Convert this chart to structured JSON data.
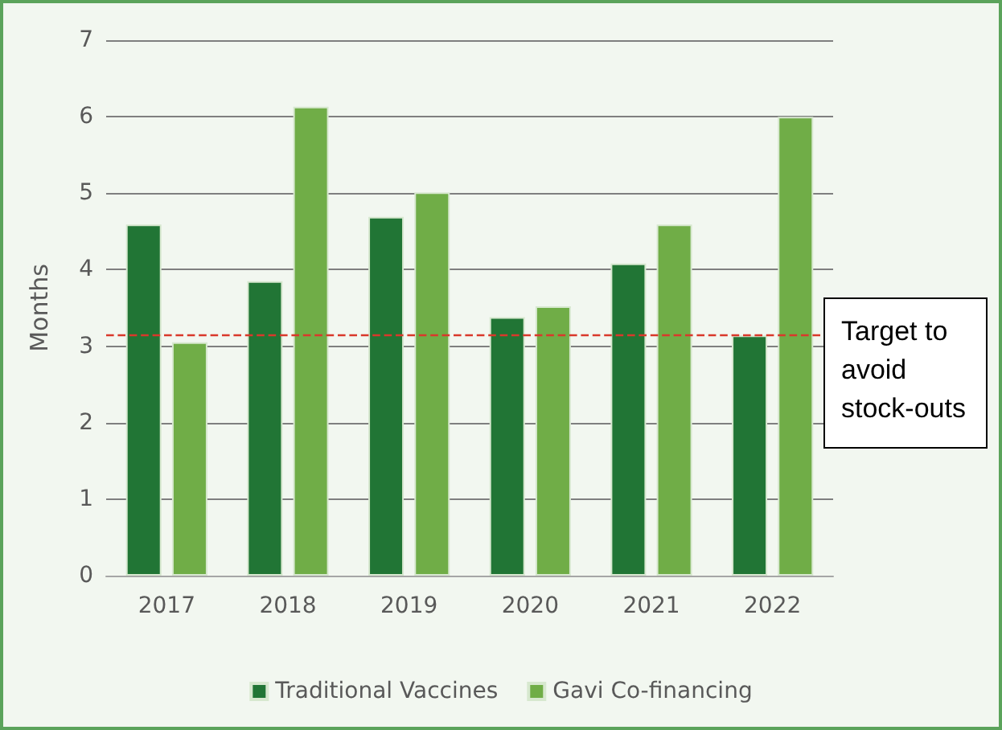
{
  "chart_data": {
    "type": "bar",
    "ylabel": "Months",
    "categories": [
      "2017",
      "2018",
      "2019",
      "2020",
      "2021",
      "2022"
    ],
    "series": [
      {
        "name": "Traditional Vaccines",
        "color": "#217535",
        "values": [
          4.59,
          3.85,
          4.69,
          3.38,
          4.08,
          3.14
        ]
      },
      {
        "name": "Gavi Co-financing",
        "color": "#70ad47",
        "values": [
          3.05,
          6.13,
          5.01,
          3.52,
          4.59,
          6.0
        ]
      }
    ],
    "ylim": [
      0,
      7
    ],
    "yticks": [
      0,
      1,
      2,
      3,
      4,
      5,
      6,
      7
    ],
    "grid": "y",
    "legend": "bottom",
    "ref_lines": [
      {
        "axis": "y",
        "value": 3.14,
        "label": "Target to avoid stock-outs",
        "color": "#d9382b",
        "line_style": "dashed"
      }
    ]
  }
}
